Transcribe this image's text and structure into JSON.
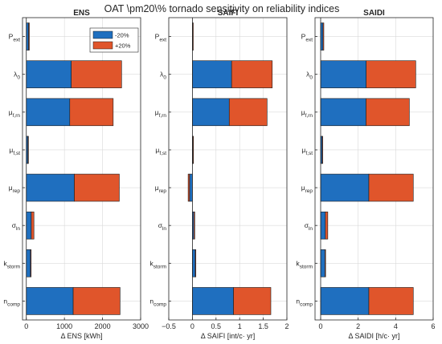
{
  "figure_title": "OAT \\pm20\\% tornado sensitivity on reliability indices",
  "colors": {
    "minus": "#1f6fbf",
    "plus": "#e0552b"
  },
  "legend": {
    "minus_label": "-20%",
    "plus_label": "+20%",
    "placement": "top-right"
  },
  "chart_data": [
    {
      "type": "bar",
      "orientation": "horizontal",
      "title": "ENS",
      "xlabel": "Δ ENS [kWh]",
      "xlim": [
        -100,
        3000
      ],
      "xticks": [
        0,
        1000,
        2000,
        3000
      ],
      "xtick_labels": [
        "0",
        "1000",
        "2000",
        "3000"
      ],
      "grid": true,
      "categories": [
        {
          "base": "P",
          "sub": "ext"
        },
        {
          "base": "λ",
          "sub": "0"
        },
        {
          "base": "μ",
          "sub": "f,rn"
        },
        {
          "base": "μ",
          "sub": "f,st"
        },
        {
          "base": "μ",
          "sub": "rep"
        },
        {
          "base": "σ",
          "sub": "ln"
        },
        {
          "base": "k",
          "sub": "storm"
        },
        {
          "base": "n",
          "sub": "comp"
        }
      ],
      "series": [
        {
          "name": "-20%",
          "values": [
            60,
            1180,
            1140,
            40,
            1260,
            130,
            110,
            1230
          ]
        },
        {
          "name": "+20%",
          "values": [
            20,
            1320,
            1140,
            10,
            1180,
            70,
            10,
            1230
          ]
        }
      ]
    },
    {
      "type": "bar",
      "orientation": "horizontal",
      "title": "SAIFI",
      "xlabel": "Δ SAIFI [int/c· yr]",
      "xlim": [
        -0.5,
        2
      ],
      "xticks": [
        -0.5,
        0,
        0.5,
        1,
        1.5,
        2
      ],
      "xtick_labels": [
        "−0.5",
        "0",
        "0.5",
        "1",
        "1.5",
        "2"
      ],
      "grid": true,
      "categories": [
        {
          "base": "P",
          "sub": "ext"
        },
        {
          "base": "λ",
          "sub": "0"
        },
        {
          "base": "μ",
          "sub": "f,rn"
        },
        {
          "base": "μ",
          "sub": "f,st"
        },
        {
          "base": "μ",
          "sub": "rep"
        },
        {
          "base": "σ",
          "sub": "ln"
        },
        {
          "base": "k",
          "sub": "storm"
        },
        {
          "base": "n",
          "sub": "comp"
        }
      ],
      "series": [
        {
          "name": "-20%",
          "values": [
            0.015,
            0.83,
            0.78,
            0.01,
            -0.06,
            0.03,
            0.07,
            0.87
          ]
        },
        {
          "name": "+20%",
          "values": [
            -0.01,
            0.86,
            0.8,
            0.005,
            -0.03,
            0.02,
            -0.01,
            0.79
          ]
        }
      ]
    },
    {
      "type": "bar",
      "orientation": "horizontal",
      "title": "SAIDI",
      "xlabel": "Δ SAIDI [h/c· yr]",
      "xlim": [
        -0.3,
        6
      ],
      "xticks": [
        0,
        2,
        4,
        6
      ],
      "xtick_labels": [
        "0",
        "2",
        "4",
        "6"
      ],
      "grid": true,
      "categories": [
        {
          "base": "P",
          "sub": "ext"
        },
        {
          "base": "λ",
          "sub": "0"
        },
        {
          "base": "μ",
          "sub": "f,rn"
        },
        {
          "base": "μ",
          "sub": "f,st"
        },
        {
          "base": "μ",
          "sub": "rep"
        },
        {
          "base": "σ",
          "sub": "ln"
        },
        {
          "base": "k",
          "sub": "storm"
        },
        {
          "base": "n",
          "sub": "comp"
        }
      ],
      "series": [
        {
          "name": "-20%",
          "values": [
            0.12,
            2.43,
            2.42,
            0.08,
            2.57,
            0.25,
            0.23,
            2.57
          ]
        },
        {
          "name": "+20%",
          "values": [
            0.05,
            2.64,
            2.31,
            0.03,
            2.37,
            0.13,
            0.02,
            2.37
          ]
        }
      ]
    }
  ]
}
